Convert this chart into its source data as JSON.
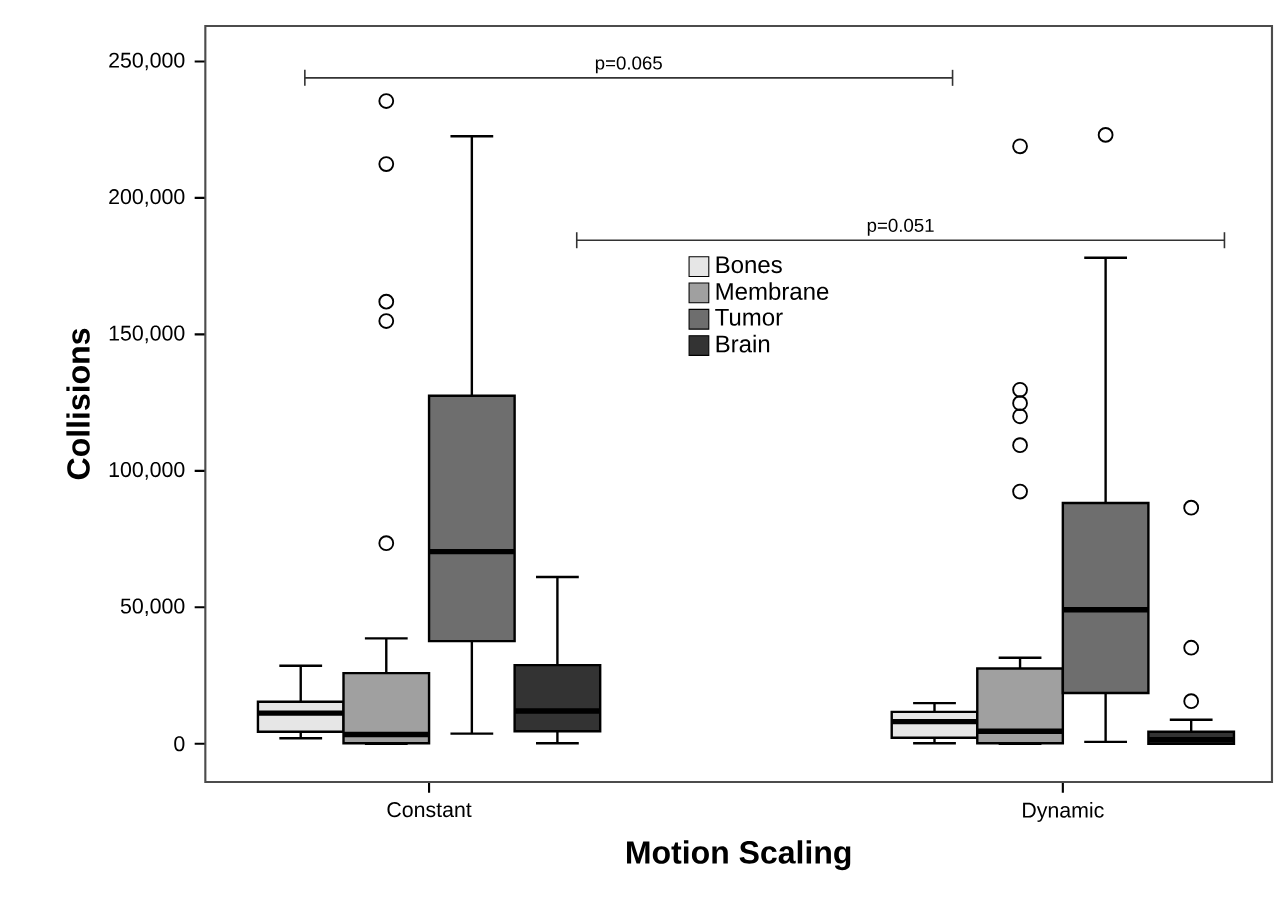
{
  "chart_data": {
    "type": "box",
    "xlabel": "Motion Scaling",
    "ylabel": "Collisions",
    "categories": [
      "Constant",
      "Dynamic"
    ],
    "ylim": [
      -14000,
      263000
    ],
    "yticks": [
      {
        "value": 0,
        "label": "0"
      },
      {
        "value": 50000,
        "label": "50,000"
      },
      {
        "value": 100000,
        "label": "100,000"
      },
      {
        "value": 150000,
        "label": "150,000"
      },
      {
        "value": 200000,
        "label": "200,000"
      },
      {
        "value": 250000,
        "label": "250,000"
      }
    ],
    "series": [
      {
        "name": "Bones",
        "color": "#e6e6e6",
        "boxes": [
          {
            "low": 2000,
            "q1": 4400,
            "median": 11200,
            "q3": 15400,
            "high": 28600
          },
          {
            "low": 200,
            "q1": 2200,
            "median": 8100,
            "q3": 11700,
            "high": 14900
          }
        ]
      },
      {
        "name": "Membrane",
        "color": "#a0a0a0",
        "boxes": [
          {
            "low": 0,
            "q1": 200,
            "median": 3400,
            "q3": 25900,
            "high": 38600,
            "outliers": [
              73500,
              154900,
              162000,
              212400,
              235500
            ]
          },
          {
            "low": 0,
            "q1": 200,
            "median": 4600,
            "q3": 27600,
            "high": 31500,
            "outliers": [
              92400,
              109400,
              120000,
              124800,
              129700,
              218900
            ]
          }
        ]
      },
      {
        "name": "Tumor",
        "color": "#6e6e6e",
        "boxes": [
          {
            "low": 3700,
            "q1": 37600,
            "median": 70400,
            "q3": 127500,
            "high": 222600
          },
          {
            "low": 700,
            "q1": 18600,
            "median": 49100,
            "q3": 88200,
            "high": 178100,
            "outliers": [
              223100
            ]
          }
        ]
      },
      {
        "name": "Brain",
        "color": "#333333",
        "boxes": [
          {
            "low": 200,
            "q1": 4600,
            "median": 12000,
            "q3": 28800,
            "high": 61100
          },
          {
            "low": 0,
            "q1": 0,
            "median": 1500,
            "q3": 4400,
            "high": 8800,
            "outliers": [
              15600,
              35200,
              86500
            ]
          }
        ]
      }
    ],
    "annotations": [
      "p=0.065",
      "p=0.051"
    ],
    "legend": "top",
    "grid": false,
    "marker": "circle"
  }
}
